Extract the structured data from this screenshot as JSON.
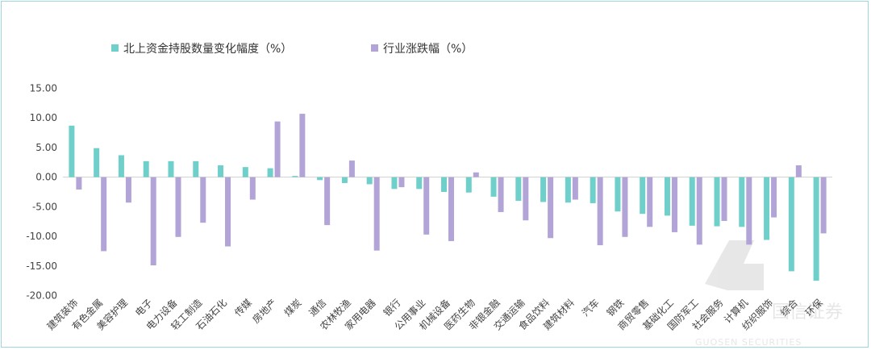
{
  "chart_data": {
    "type": "bar",
    "series": [
      {
        "name": "北上资金持股数量变化幅度（%）",
        "color": "#6fcfca",
        "values": [
          8.7,
          4.9,
          3.7,
          2.7,
          2.7,
          2.7,
          2.0,
          1.7,
          1.5,
          0.2,
          -0.5,
          -1.0,
          -1.2,
          -2.0,
          -2.0,
          -2.5,
          -2.6,
          -3.3,
          -4.0,
          -4.2,
          -4.3,
          -4.4,
          -5.8,
          -6.2,
          -6.5,
          -8.2,
          -8.3,
          -8.4,
          -10.6,
          -15.9,
          -17.5
        ]
      },
      {
        "name": "行业涨跌幅（%）",
        "color": "#b3a4d8",
        "values": [
          -2.1,
          -12.5,
          -4.3,
          -14.9,
          -10.1,
          -7.7,
          -11.7,
          -3.8,
          9.4,
          10.7,
          -8.1,
          2.8,
          -12.4,
          -1.7,
          -9.7,
          -10.8,
          0.8,
          -5.9,
          -7.3,
          -10.3,
          -3.8,
          -11.5,
          -10.1,
          -8.4,
          -9.3,
          -11.4,
          -7.4,
          -11.4,
          -6.8,
          2.0,
          -9.5
        ]
      }
    ],
    "categories": [
      "建筑装饰",
      "有色金属",
      "美容护理",
      "电子",
      "电力设备",
      "轻工制造",
      "石油石化",
      "传媒",
      "房地产",
      "煤炭",
      "通信",
      "农林牧渔",
      "家用电器",
      "银行",
      "公用事业",
      "机械设备",
      "医药生物",
      "非银金融",
      "交通运输",
      "食品饮料",
      "建筑材料",
      "汽车",
      "钢铁",
      "商贸零售",
      "基础化工",
      "国防军工",
      "社会服务",
      "计算机",
      "纺织服饰",
      "综合",
      "环保"
    ],
    "yticks": [
      "15.00",
      "10.00",
      "5.00",
      "0.00",
      "-5.00",
      "-10.00",
      "-15.00",
      "-20.00"
    ],
    "ylim": [
      -20,
      15
    ],
    "legend_position": "top",
    "grid": false
  },
  "watermark": {
    "brand": "国信证券",
    "brand_en": "GUOSEN SECURITIES"
  }
}
